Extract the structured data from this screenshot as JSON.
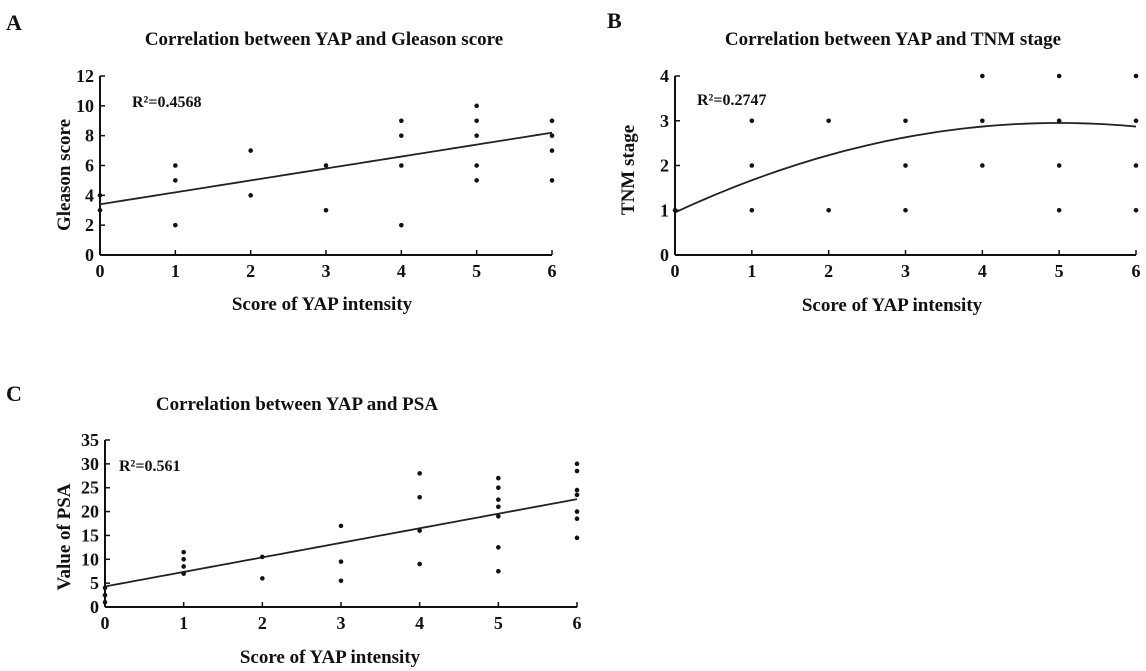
{
  "chart_data": [
    {
      "panel": "A",
      "type": "scatter",
      "title": "Correlation between YAP and Gleason score",
      "xlabel": "Score of YAP intensity",
      "ylabel": "Gleason score",
      "xlim": [
        0,
        6
      ],
      "ylim": [
        0,
        12
      ],
      "xticks": [
        0,
        1,
        2,
        3,
        4,
        5,
        6
      ],
      "yticks": [
        0,
        2,
        4,
        6,
        8,
        10,
        12
      ],
      "annotation": "R²=0.4568",
      "fit": {
        "type": "linear",
        "intercept": 3.4,
        "slope": 0.8
      },
      "points": [
        [
          0,
          3
        ],
        [
          0,
          4
        ],
        [
          1,
          2
        ],
        [
          1,
          5
        ],
        [
          1,
          6
        ],
        [
          2,
          4
        ],
        [
          2,
          7
        ],
        [
          3,
          3
        ],
        [
          3,
          6
        ],
        [
          4,
          2
        ],
        [
          4,
          6
        ],
        [
          4,
          8
        ],
        [
          4,
          9
        ],
        [
          5,
          5
        ],
        [
          5,
          6
        ],
        [
          5,
          8
        ],
        [
          5,
          9
        ],
        [
          5,
          10
        ],
        [
          6,
          5
        ],
        [
          6,
          7
        ],
        [
          6,
          8
        ],
        [
          6,
          9
        ]
      ]
    },
    {
      "panel": "B",
      "type": "scatter",
      "title": "Correlation between YAP and TNM stage",
      "xlabel": "Score of YAP intensity",
      "ylabel": "TNM stage",
      "xlim": [
        0,
        6
      ],
      "ylim": [
        0,
        4
      ],
      "xticks": [
        0,
        1,
        2,
        3,
        4,
        5,
        6
      ],
      "yticks": [
        0,
        1,
        2,
        3,
        4
      ],
      "annotation": "R²=0.2747",
      "fit": {
        "type": "quadratic",
        "a": -0.08,
        "b": 0.8,
        "c": 0.95
      },
      "points": [
        [
          0,
          1
        ],
        [
          1,
          1
        ],
        [
          1,
          2
        ],
        [
          1,
          3
        ],
        [
          2,
          1
        ],
        [
          2,
          3
        ],
        [
          3,
          1
        ],
        [
          3,
          2
        ],
        [
          3,
          3
        ],
        [
          4,
          2
        ],
        [
          4,
          3
        ],
        [
          4,
          4
        ],
        [
          5,
          1
        ],
        [
          5,
          2
        ],
        [
          5,
          3
        ],
        [
          5,
          4
        ],
        [
          6,
          1
        ],
        [
          6,
          2
        ],
        [
          6,
          3
        ],
        [
          6,
          4
        ]
      ]
    },
    {
      "panel": "C",
      "type": "scatter",
      "title": "Correlation between YAP and PSA",
      "xlabel": "Score of YAP intensity",
      "ylabel": "Value of PSA",
      "xlim": [
        0,
        6
      ],
      "ylim": [
        0,
        35
      ],
      "xticks": [
        0,
        1,
        2,
        3,
        4,
        5,
        6
      ],
      "yticks": [
        0,
        5,
        10,
        15,
        20,
        25,
        30,
        35
      ],
      "annotation": "R²=0.561",
      "fit": {
        "type": "linear",
        "intercept": 4.3,
        "slope": 3.05
      },
      "points": [
        [
          0,
          1
        ],
        [
          0,
          2.5
        ],
        [
          0,
          4
        ],
        [
          1,
          7
        ],
        [
          1,
          8.5
        ],
        [
          1,
          10
        ],
        [
          1,
          11.5
        ],
        [
          2,
          6
        ],
        [
          2,
          10.5
        ],
        [
          3,
          5.5
        ],
        [
          3,
          9.5
        ],
        [
          3,
          17
        ],
        [
          4,
          9
        ],
        [
          4,
          16
        ],
        [
          4,
          23
        ],
        [
          4,
          28
        ],
        [
          5,
          7.5
        ],
        [
          5,
          12.5
        ],
        [
          5,
          19
        ],
        [
          5,
          21
        ],
        [
          5,
          22.5
        ],
        [
          5,
          25
        ],
        [
          5,
          27
        ],
        [
          6,
          14.5
        ],
        [
          6,
          18.5
        ],
        [
          6,
          20
        ],
        [
          6,
          23.5
        ],
        [
          6,
          24.5
        ],
        [
          6,
          28.5
        ],
        [
          6,
          30
        ]
      ]
    }
  ]
}
